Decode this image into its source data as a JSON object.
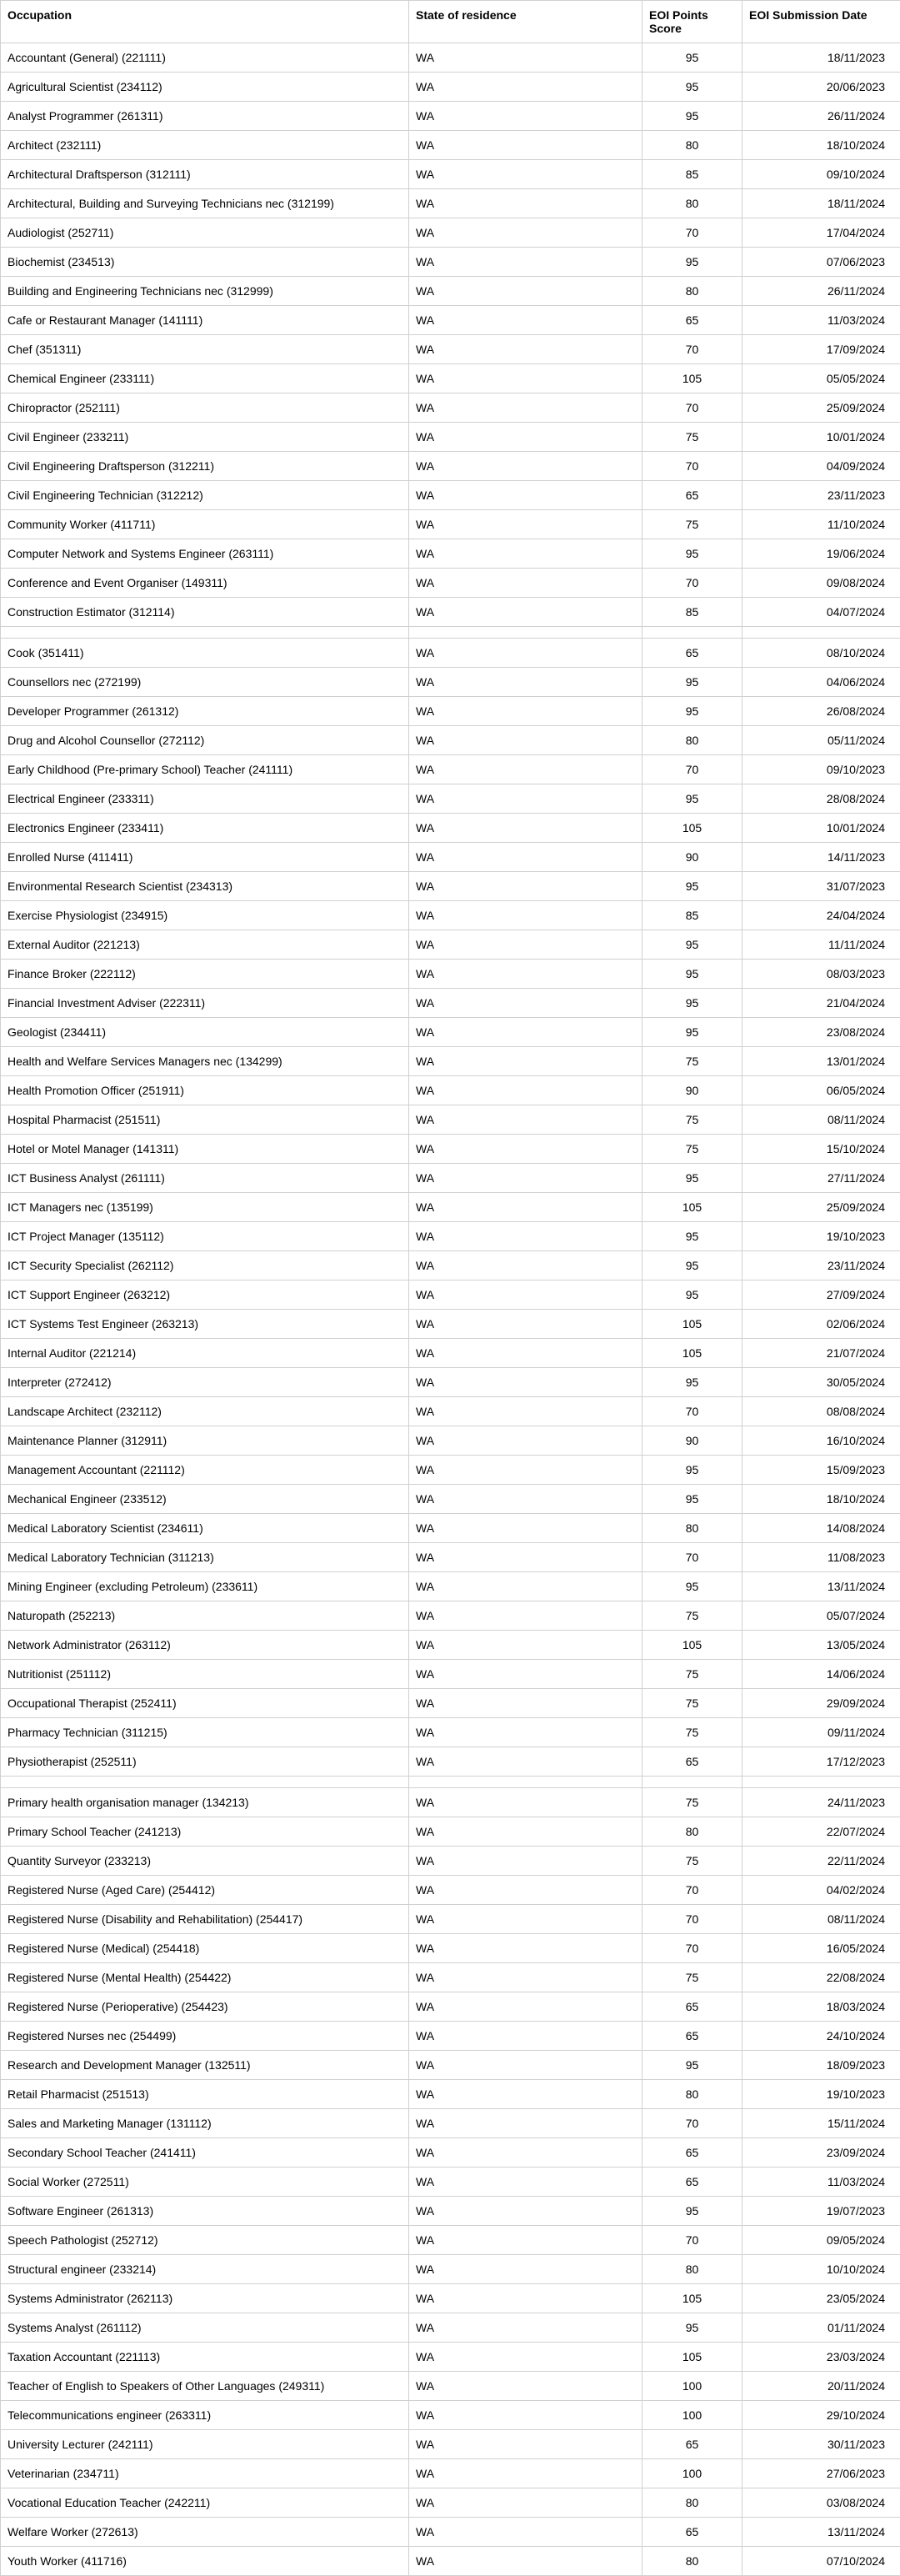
{
  "columns": [
    "Occupation",
    "State of residence",
    "EOI Points Score",
    "EOI Submission Date"
  ],
  "groups": [
    [
      [
        "Accountant (General) (221111)",
        "WA",
        "95",
        "18/11/2023"
      ],
      [
        "Agricultural Scientist (234112)",
        "WA",
        "95",
        "20/06/2023"
      ],
      [
        "Analyst Programmer (261311)",
        "WA",
        "95",
        "26/11/2024"
      ],
      [
        "Architect (232111)",
        "WA",
        "80",
        "18/10/2024"
      ],
      [
        "Architectural Draftsperson (312111)",
        "WA",
        "85",
        "09/10/2024"
      ],
      [
        "Architectural, Building and Surveying Technicians nec (312199)",
        "WA",
        "80",
        "18/11/2024"
      ],
      [
        "Audiologist (252711)",
        "WA",
        "70",
        "17/04/2024"
      ],
      [
        "Biochemist (234513)",
        "WA",
        "95",
        "07/06/2023"
      ],
      [
        "Building and Engineering Technicians nec (312999)",
        "WA",
        "80",
        "26/11/2024"
      ],
      [
        "Cafe or Restaurant Manager (141111)",
        "WA",
        "65",
        "11/03/2024"
      ],
      [
        "Chef (351311)",
        "WA",
        "70",
        "17/09/2024"
      ],
      [
        "Chemical Engineer (233111)",
        "WA",
        "105",
        "05/05/2024"
      ],
      [
        "Chiropractor (252111)",
        "WA",
        "70",
        "25/09/2024"
      ],
      [
        "Civil Engineer (233211)",
        "WA",
        "75",
        "10/01/2024"
      ],
      [
        "Civil Engineering Draftsperson (312211)",
        "WA",
        "70",
        "04/09/2024"
      ],
      [
        "Civil Engineering Technician (312212)",
        "WA",
        "65",
        "23/11/2023"
      ],
      [
        "Community Worker (411711)",
        "WA",
        "75",
        "11/10/2024"
      ],
      [
        "Computer Network and Systems Engineer (263111)",
        "WA",
        "95",
        "19/06/2024"
      ],
      [
        "Conference and Event Organiser (149311)",
        "WA",
        "70",
        "09/08/2024"
      ],
      [
        "Construction Estimator (312114)",
        "WA",
        "85",
        "04/07/2024"
      ]
    ],
    [
      [
        "Cook (351411)",
        "WA",
        "65",
        "08/10/2024"
      ],
      [
        "Counsellors nec (272199)",
        "WA",
        "95",
        "04/06/2024"
      ],
      [
        "Developer Programmer (261312)",
        "WA",
        "95",
        "26/08/2024"
      ],
      [
        "Drug and Alcohol Counsellor (272112)",
        "WA",
        "80",
        "05/11/2024"
      ],
      [
        "Early Childhood (Pre-primary School) Teacher (241111)",
        "WA",
        "70",
        "09/10/2023"
      ],
      [
        "Electrical Engineer (233311)",
        "WA",
        "95",
        "28/08/2024"
      ],
      [
        "Electronics Engineer (233411)",
        "WA",
        "105",
        "10/01/2024"
      ],
      [
        "Enrolled Nurse (411411)",
        "WA",
        "90",
        "14/11/2023"
      ],
      [
        "Environmental Research Scientist (234313)",
        "WA",
        "95",
        "31/07/2023"
      ],
      [
        "Exercise Physiologist (234915)",
        "WA",
        "85",
        "24/04/2024"
      ],
      [
        "External Auditor (221213)",
        "WA",
        "95",
        "11/11/2024"
      ],
      [
        "Finance Broker (222112)",
        "WA",
        "95",
        "08/03/2023"
      ],
      [
        "Financial Investment Adviser (222311)",
        "WA",
        "95",
        "21/04/2024"
      ],
      [
        "Geologist (234411)",
        "WA",
        "95",
        "23/08/2024"
      ],
      [
        "Health and Welfare Services Managers nec (134299)",
        "WA",
        "75",
        "13/01/2024"
      ],
      [
        "Health Promotion Officer (251911)",
        "WA",
        "90",
        "06/05/2024"
      ],
      [
        "Hospital Pharmacist (251511)",
        "WA",
        "75",
        "08/11/2024"
      ],
      [
        "Hotel or Motel Manager (141311)",
        "WA",
        "75",
        "15/10/2024"
      ],
      [
        "ICT Business Analyst (261111)",
        "WA",
        "95",
        "27/11/2024"
      ],
      [
        "ICT Managers nec (135199)",
        "WA",
        "105",
        "25/09/2024"
      ],
      [
        "ICT Project Manager (135112)",
        "WA",
        "95",
        "19/10/2023"
      ],
      [
        "ICT Security Specialist (262112)",
        "WA",
        "95",
        "23/11/2024"
      ],
      [
        "ICT Support Engineer (263212)",
        "WA",
        "95",
        "27/09/2024"
      ],
      [
        "ICT Systems Test Engineer (263213)",
        "WA",
        "105",
        "02/06/2024"
      ],
      [
        "Internal Auditor (221214)",
        "WA",
        "105",
        "21/07/2024"
      ],
      [
        "Interpreter (272412)",
        "WA",
        "95",
        "30/05/2024"
      ],
      [
        "Landscape Architect (232112)",
        "WA",
        "70",
        "08/08/2024"
      ],
      [
        "Maintenance Planner (312911)",
        "WA",
        "90",
        "16/10/2024"
      ],
      [
        "Management Accountant (221112)",
        "WA",
        "95",
        "15/09/2023"
      ],
      [
        "Mechanical Engineer (233512)",
        "WA",
        "95",
        "18/10/2024"
      ],
      [
        "Medical Laboratory Scientist (234611)",
        "WA",
        "80",
        "14/08/2024"
      ],
      [
        "Medical Laboratory Technician (311213)",
        "WA",
        "70",
        "11/08/2023"
      ],
      [
        "Mining Engineer (excluding Petroleum) (233611)",
        "WA",
        "95",
        "13/11/2024"
      ],
      [
        "Naturopath (252213)",
        "WA",
        "75",
        "05/07/2024"
      ],
      [
        "Network Administrator (263112)",
        "WA",
        "105",
        "13/05/2024"
      ],
      [
        "Nutritionist (251112)",
        "WA",
        "75",
        "14/06/2024"
      ],
      [
        "Occupational Therapist (252411)",
        "WA",
        "75",
        "29/09/2024"
      ],
      [
        "Pharmacy Technician (311215)",
        "WA",
        "75",
        "09/11/2024"
      ],
      [
        "Physiotherapist (252511)",
        "WA",
        "65",
        "17/12/2023"
      ]
    ],
    [
      [
        "Primary health organisation manager (134213)",
        "WA",
        "75",
        "24/11/2023"
      ],
      [
        "Primary School Teacher (241213)",
        "WA",
        "80",
        "22/07/2024"
      ],
      [
        "Quantity Surveyor (233213)",
        "WA",
        "75",
        "22/11/2024"
      ],
      [
        "Registered Nurse (Aged Care) (254412)",
        "WA",
        "70",
        "04/02/2024"
      ],
      [
        "Registered Nurse (Disability and Rehabilitation) (254417)",
        "WA",
        "70",
        "08/11/2024"
      ],
      [
        "Registered Nurse (Medical) (254418)",
        "WA",
        "70",
        "16/05/2024"
      ],
      [
        "Registered Nurse (Mental Health) (254422)",
        "WA",
        "75",
        "22/08/2024"
      ],
      [
        "Registered Nurse (Perioperative) (254423)",
        "WA",
        "65",
        "18/03/2024"
      ],
      [
        "Registered Nurses nec (254499)",
        "WA",
        "65",
        "24/10/2024"
      ],
      [
        "Research and Development Manager (132511)",
        "WA",
        "95",
        "18/09/2023"
      ],
      [
        "Retail Pharmacist (251513)",
        "WA",
        "80",
        "19/10/2023"
      ],
      [
        "Sales and Marketing Manager (131112)",
        "WA",
        "70",
        "15/11/2024"
      ],
      [
        "Secondary School Teacher (241411)",
        "WA",
        "65",
        "23/09/2024"
      ],
      [
        "Social Worker (272511)",
        "WA",
        "65",
        "11/03/2024"
      ],
      [
        "Software Engineer (261313)",
        "WA",
        "95",
        "19/07/2023"
      ],
      [
        "Speech Pathologist (252712)",
        "WA",
        "70",
        "09/05/2024"
      ],
      [
        "Structural engineer (233214)",
        "WA",
        "80",
        "10/10/2024"
      ],
      [
        "Systems Administrator (262113)",
        "WA",
        "105",
        "23/05/2024"
      ],
      [
        "Systems Analyst (261112)",
        "WA",
        "95",
        "01/11/2024"
      ],
      [
        "Taxation Accountant (221113)",
        "WA",
        "105",
        "23/03/2024"
      ],
      [
        "Teacher of English to Speakers of Other Languages (249311)",
        "WA",
        "100",
        "20/11/2024"
      ],
      [
        "Telecommunications engineer (263311)",
        "WA",
        "100",
        "29/10/2024"
      ],
      [
        "University Lecturer (242111)",
        "WA",
        "65",
        "30/11/2023"
      ],
      [
        "Veterinarian (234711)",
        "WA",
        "100",
        "27/06/2023"
      ],
      [
        "Vocational Education Teacher (242211)",
        "WA",
        "80",
        "03/08/2024"
      ],
      [
        "Welfare Worker (272613)",
        "WA",
        "65",
        "13/11/2024"
      ],
      [
        "Youth Worker (411716)",
        "WA",
        "80",
        "07/10/2024"
      ]
    ]
  ]
}
